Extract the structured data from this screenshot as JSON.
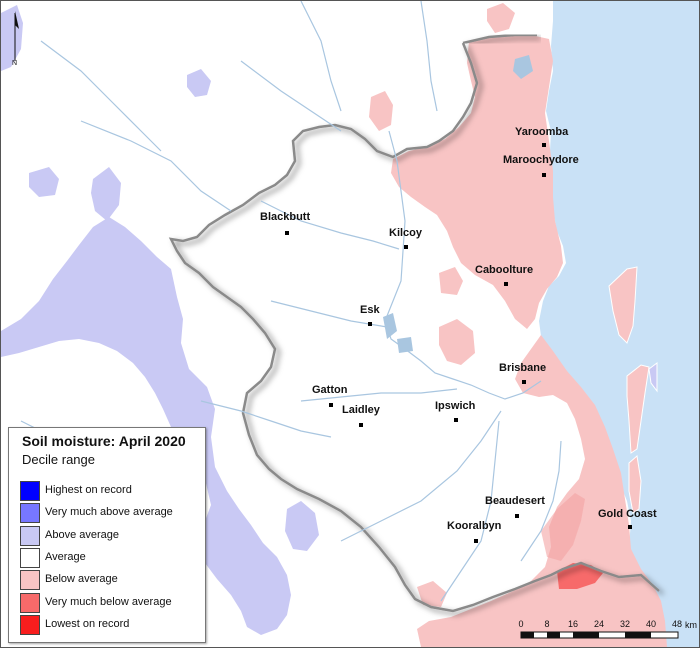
{
  "legend": {
    "title": "Soil moisture: April 2020",
    "subtitle": "Decile range",
    "items": [
      {
        "label": "Highest on record",
        "color": "#0000ff"
      },
      {
        "label": "Very much above average",
        "color": "#7777ff"
      },
      {
        "label": "Above average",
        "color": "#c9c9f4"
      },
      {
        "label": "Average",
        "color": "#ffffff"
      },
      {
        "label": "Below average",
        "color": "#f8c4c4"
      },
      {
        "label": "Very much below average",
        "color": "#f76a6a"
      },
      {
        "label": "Lowest on record",
        "color": "#f81e1e"
      }
    ]
  },
  "towns": [
    {
      "name": "Yaroomba"
    },
    {
      "name": "Maroochydore"
    },
    {
      "name": "Blackbutt"
    },
    {
      "name": "Kilcoy"
    },
    {
      "name": "Caboolture"
    },
    {
      "name": "Esk"
    },
    {
      "name": "Brisbane"
    },
    {
      "name": "Gatton"
    },
    {
      "name": "Laidley"
    },
    {
      "name": "Ipswich"
    },
    {
      "name": "Beaudesert"
    },
    {
      "name": "Gold Coast"
    },
    {
      "name": "Kooralbyn"
    }
  ],
  "scale_bar": {
    "ticks": [
      "0",
      "8",
      "16",
      "24",
      "32",
      "40",
      "48"
    ],
    "unit": "km"
  },
  "north_arrow": {
    "label": "N"
  },
  "colors": {
    "ocean": "#c9e1f6",
    "river": "#a9c6e0",
    "catchment_outline": "#8a8a8a"
  }
}
